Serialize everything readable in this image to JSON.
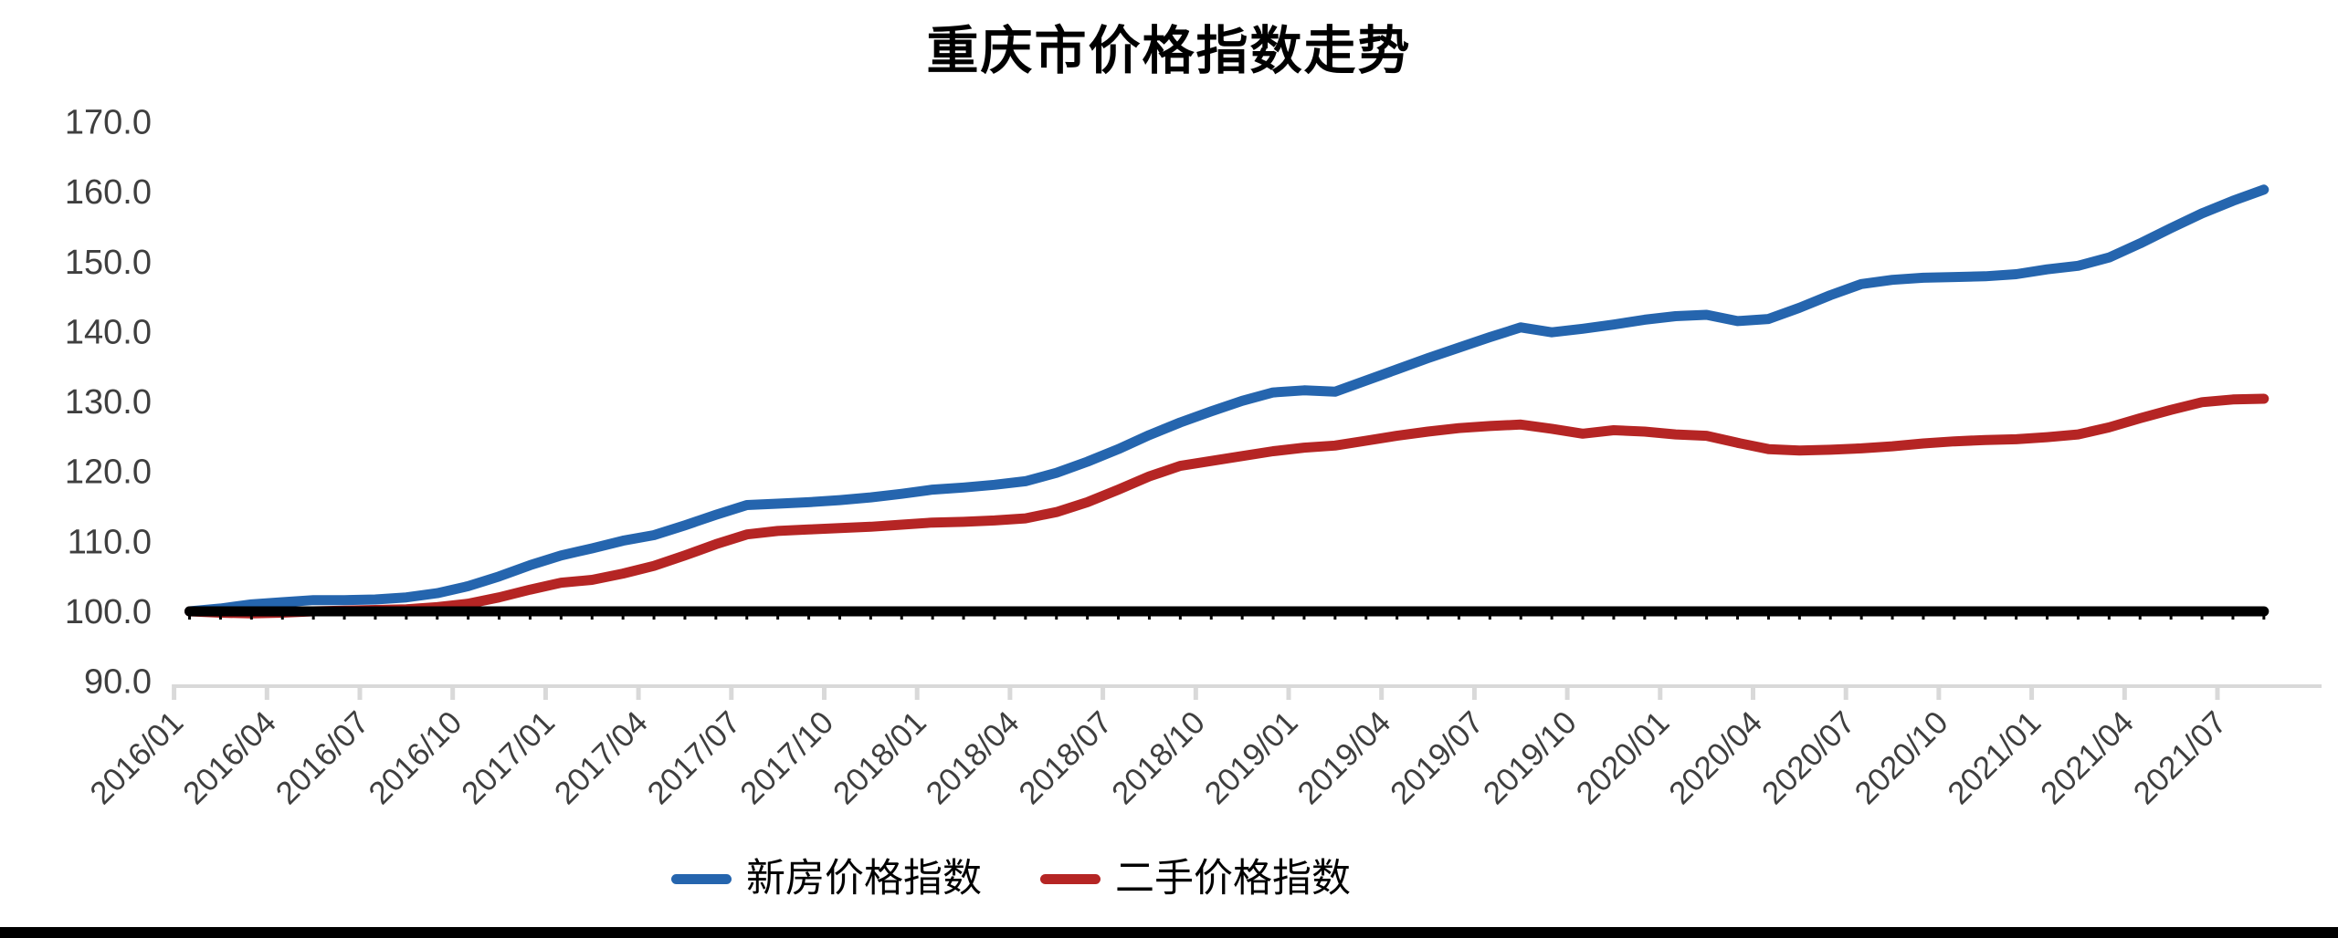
{
  "page": {
    "background": "#FFFFFF"
  },
  "chart_data": {
    "type": "line",
    "title": "重庆市价格指数走势",
    "x": [
      "2016/01",
      "2016/02",
      "2016/03",
      "2016/04",
      "2016/05",
      "2016/06",
      "2016/07",
      "2016/08",
      "2016/09",
      "2016/10",
      "2016/11",
      "2016/12",
      "2017/01",
      "2017/02",
      "2017/03",
      "2017/04",
      "2017/05",
      "2017/06",
      "2017/07",
      "2017/08",
      "2017/09",
      "2017/10",
      "2017/11",
      "2017/12",
      "2018/01",
      "2018/02",
      "2018/03",
      "2018/04",
      "2018/05",
      "2018/06",
      "2018/07",
      "2018/08",
      "2018/09",
      "2018/10",
      "2018/11",
      "2018/12",
      "2019/01",
      "2019/02",
      "2019/03",
      "2019/04",
      "2019/05",
      "2019/06",
      "2019/07",
      "2019/08",
      "2019/09",
      "2019/10",
      "2019/11",
      "2019/12",
      "2020/01",
      "2020/02",
      "2020/03",
      "2020/04",
      "2020/05",
      "2020/06",
      "2020/07",
      "2020/08",
      "2020/09",
      "2020/10",
      "2020/11",
      "2020/12",
      "2021/01",
      "2021/02",
      "2021/03",
      "2021/04",
      "2021/05",
      "2021/06",
      "2021/07",
      "2021/08"
    ],
    "x_tick_every": 3,
    "x_tick_labels_shown": [
      "2016/01",
      "2016/04",
      "2016/07",
      "2016/10",
      "2017/01",
      "2017/04",
      "2017/07",
      "2017/10",
      "2018/01",
      "2018/04",
      "2018/07",
      "2018/10",
      "2019/01",
      "2019/04",
      "2019/07",
      "2019/10",
      "2020/01",
      "2020/04",
      "2020/07",
      "2020/10",
      "2021/01",
      "2021/04",
      "2021/07"
    ],
    "ytick_labels": [
      "170.0",
      "160.0",
      "150.0",
      "140.0",
      "130.0",
      "120.0",
      "110.0",
      "100.0",
      "90.0"
    ],
    "ylim": [
      90,
      170
    ],
    "grid": false,
    "legend_position": "bottom",
    "axis_color": "#D9D9D9",
    "tick_label_color": "#3F3F3F",
    "baseline": {
      "value": 100.0,
      "color": "#000000"
    },
    "series": [
      {
        "name": "新房价格指数",
        "color": "#2565AE",
        "values": [
          100.0,
          100.4,
          101.0,
          101.3,
          101.6,
          101.6,
          101.7,
          102.0,
          102.6,
          103.6,
          105.0,
          106.6,
          108.0,
          109.0,
          110.1,
          110.9,
          112.3,
          113.8,
          115.2,
          115.4,
          115.6,
          115.9,
          116.3,
          116.8,
          117.4,
          117.7,
          118.1,
          118.6,
          119.8,
          121.4,
          123.2,
          125.2,
          127.0,
          128.6,
          130.1,
          131.3,
          131.6,
          131.4,
          133.0,
          134.6,
          136.2,
          137.7,
          139.2,
          140.6,
          139.9,
          140.4,
          141.0,
          141.7,
          142.2,
          142.4,
          141.5,
          141.8,
          143.4,
          145.2,
          146.8,
          147.4,
          147.7,
          147.8,
          147.9,
          148.2,
          148.9,
          149.4,
          150.6,
          152.6,
          154.8,
          156.9,
          158.7,
          160.3
        ]
      },
      {
        "name": "二手价格指数",
        "color": "#B52524",
        "values": [
          100.0,
          99.8,
          99.7,
          99.8,
          100.0,
          100.1,
          100.2,
          100.3,
          100.6,
          101.1,
          102.0,
          103.1,
          104.1,
          104.5,
          105.4,
          106.5,
          108.0,
          109.6,
          111.0,
          111.5,
          111.7,
          111.9,
          112.1,
          112.4,
          112.7,
          112.8,
          113.0,
          113.3,
          114.2,
          115.6,
          117.4,
          119.3,
          120.8,
          121.5,
          122.2,
          122.9,
          123.4,
          123.7,
          124.4,
          125.1,
          125.7,
          126.2,
          126.5,
          126.7,
          126.1,
          125.4,
          125.9,
          125.7,
          125.3,
          125.1,
          124.1,
          123.2,
          123.0,
          123.1,
          123.3,
          123.6,
          124.0,
          124.3,
          124.5,
          124.6,
          124.9,
          125.3,
          126.3,
          127.6,
          128.8,
          129.9,
          130.3,
          130.4
        ]
      }
    ]
  }
}
